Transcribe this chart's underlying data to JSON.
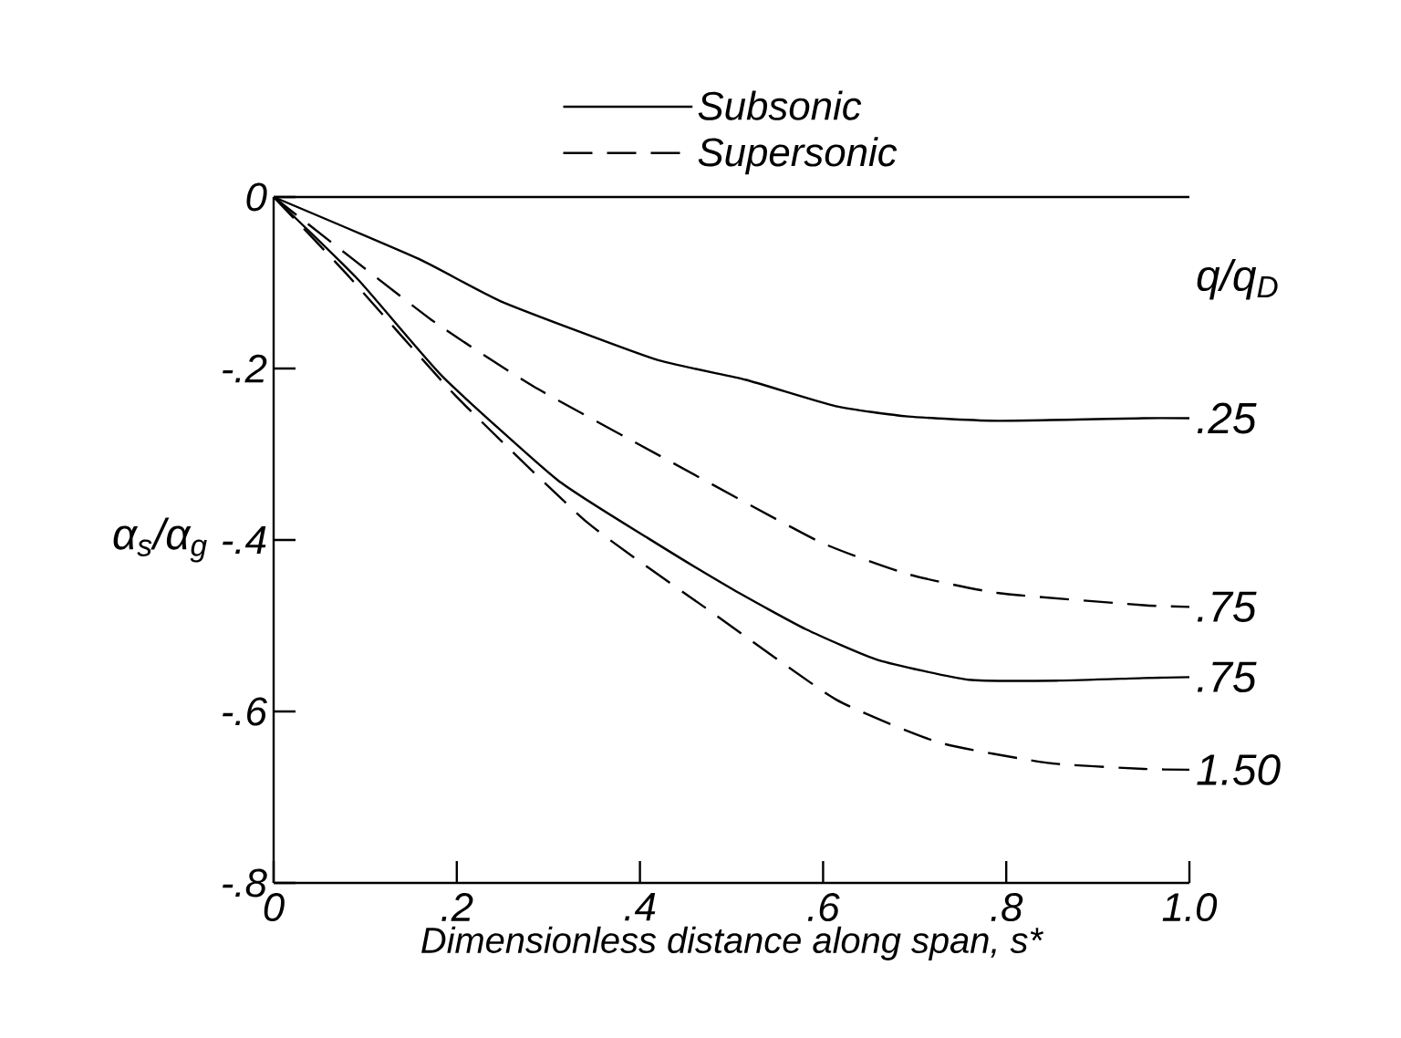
{
  "chart_data": {
    "type": "line",
    "xlabel": "Dimensionless distance along span, s*",
    "ylabel": "α$_{s}$/α$_{g}$",
    "xlim": [
      0,
      1.0
    ],
    "ylim": [
      -0.8,
      0
    ],
    "xticks": [
      {
        "value": 0,
        "label": "0"
      },
      {
        "value": 0.2,
        "label": ".2"
      },
      {
        "value": 0.4,
        "label": ".4"
      },
      {
        "value": 0.6,
        "label": ".6"
      },
      {
        "value": 0.8,
        "label": ".8"
      },
      {
        "value": 1.0,
        "label": "1.0"
      }
    ],
    "yticks": [
      {
        "value": 0,
        "label": "0"
      },
      {
        "value": -0.2,
        "label": "-.2"
      },
      {
        "value": -0.4,
        "label": "-.4"
      },
      {
        "value": -0.6,
        "label": "-.6"
      },
      {
        "value": -0.8,
        "label": "-.8"
      }
    ],
    "grid": false,
    "legend": "top",
    "marker": "none",
    "ref_lines": [
      {
        "axis": "y",
        "value": 0,
        "label": null
      }
    ],
    "series": [
      {
        "name": "Subsonic",
        "color": "#000000",
        "line_style": "solid",
        "x": [
          0,
          0.158,
          0.251,
          0.416,
          0.515,
          0.614,
          0.693,
          0.792,
          0.95,
          1.0
        ],
        "values": [
          0,
          -0.072,
          -0.123,
          -0.189,
          -0.213,
          -0.244,
          -0.256,
          -0.261,
          -0.258,
          -0.258
        ]
      },
      {
        "name": "Supersonic",
        "color": "#000000",
        "line_style": "dashed",
        "x": [
          0,
          0.172,
          0.284,
          0.422,
          0.594,
          0.693,
          0.792,
          0.95,
          1.0
        ],
        "values": [
          0,
          -0.143,
          -0.221,
          -0.302,
          -0.401,
          -0.44,
          -0.462,
          -0.476,
          -0.478
        ]
      },
      {
        "color": "#000000",
        "line_style": "solid",
        "x": [
          0,
          0.092,
          0.185,
          0.31,
          0.409,
          0.502,
          0.581,
          0.66,
          0.759,
          0.858,
          0.95,
          1.0
        ],
        "values": [
          0,
          -0.096,
          -0.21,
          -0.33,
          -0.398,
          -0.458,
          -0.504,
          -0.54,
          -0.563,
          -0.564,
          -0.561,
          -0.56
        ]
      },
      {
        "color": "#000000",
        "line_style": "dashed",
        "x": [
          0,
          0.079,
          0.198,
          0.343,
          0.482,
          0.614,
          0.726,
          0.845,
          0.95,
          1.0
        ],
        "values": [
          0,
          -0.089,
          -0.231,
          -0.38,
          -0.487,
          -0.586,
          -0.636,
          -0.66,
          -0.667,
          -0.668
        ]
      }
    ],
    "annotations": [
      "q/q$_{D}$",
      ".25",
      ".75",
      ".75",
      "1.50"
    ]
  }
}
